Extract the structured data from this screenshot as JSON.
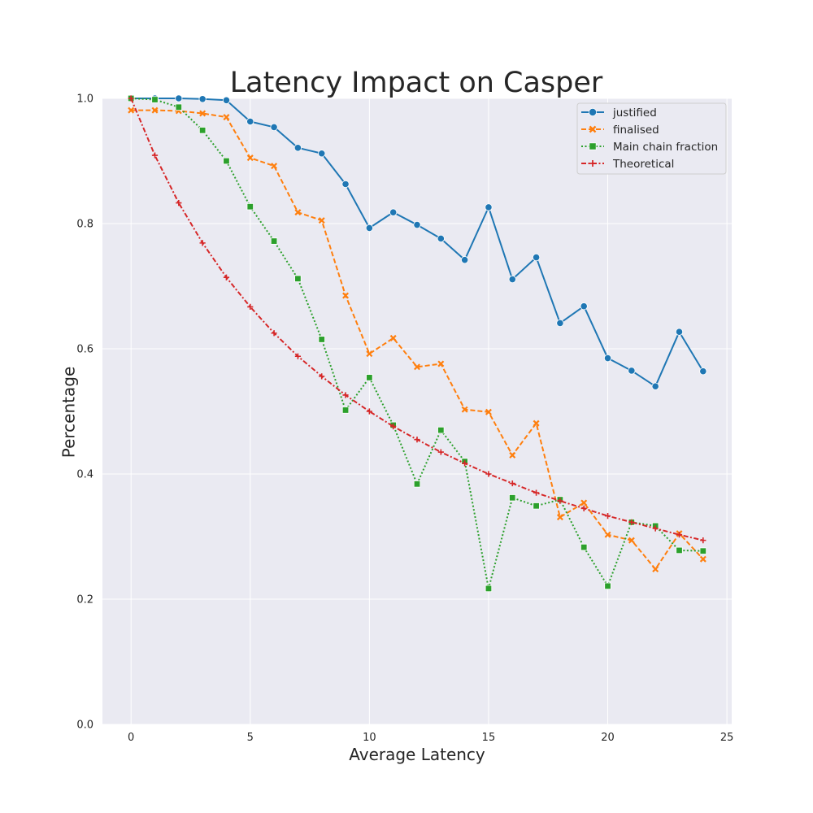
{
  "chart_data": {
    "type": "line",
    "title": "Latency Impact on Casper",
    "xlabel": "Average Latency",
    "ylabel": "Percentage",
    "xlim": [
      -1.2,
      25.2
    ],
    "ylim": [
      0,
      1.0
    ],
    "xticks": [
      0,
      5,
      10,
      15,
      20,
      25
    ],
    "yticks": [
      0.0,
      0.2,
      0.4,
      0.6,
      0.8,
      1.0
    ],
    "ytick_labels": [
      "0.0",
      "0.2",
      "0.4",
      "0.6",
      "0.8",
      "1.0"
    ],
    "grid": true,
    "legend_position": "top-right",
    "x": [
      0,
      1,
      2,
      3,
      4,
      5,
      6,
      7,
      8,
      9,
      10,
      11,
      12,
      13,
      14,
      15,
      16,
      17,
      18,
      19,
      20,
      21,
      22,
      23,
      24
    ],
    "series": [
      {
        "name": "justified",
        "color": "#1f77b4",
        "dash": "solid",
        "marker": "circle",
        "values": [
          1.0,
          1.0,
          1.0,
          0.999,
          0.997,
          0.963,
          0.954,
          0.921,
          0.912,
          0.863,
          0.793,
          0.818,
          0.798,
          0.776,
          0.742,
          0.826,
          0.711,
          0.746,
          0.641,
          0.668,
          0.585,
          0.565,
          0.54,
          0.627,
          0.564
        ]
      },
      {
        "name": "finalised",
        "color": "#ff7f0e",
        "dash": "dashed",
        "marker": "x",
        "values": [
          0.981,
          0.981,
          0.98,
          0.976,
          0.97,
          0.905,
          0.892,
          0.818,
          0.805,
          0.685,
          0.592,
          0.617,
          0.571,
          0.576,
          0.503,
          0.499,
          0.43,
          0.481,
          0.331,
          0.354,
          0.303,
          0.294,
          0.248,
          0.305,
          0.264
        ]
      },
      {
        "name": "Main chain fraction",
        "color": "#2ca02c",
        "dash": "dotted",
        "marker": "square",
        "values": [
          1.0,
          0.998,
          0.986,
          0.949,
          0.9,
          0.827,
          0.772,
          0.712,
          0.615,
          0.502,
          0.554,
          0.478,
          0.384,
          0.47,
          0.42,
          0.217,
          0.362,
          0.349,
          0.359,
          0.283,
          0.221,
          0.323,
          0.317,
          0.278,
          0.277
        ]
      },
      {
        "name": "Theoretical",
        "color": "#d62728",
        "dash": "dashdot",
        "marker": "plus",
        "values": [
          1.0,
          0.909,
          0.833,
          0.769,
          0.714,
          0.667,
          0.625,
          0.588,
          0.556,
          0.526,
          0.5,
          0.476,
          0.455,
          0.435,
          0.417,
          0.4,
          0.385,
          0.37,
          0.357,
          0.345,
          0.333,
          0.323,
          0.313,
          0.303,
          0.294
        ]
      }
    ]
  }
}
